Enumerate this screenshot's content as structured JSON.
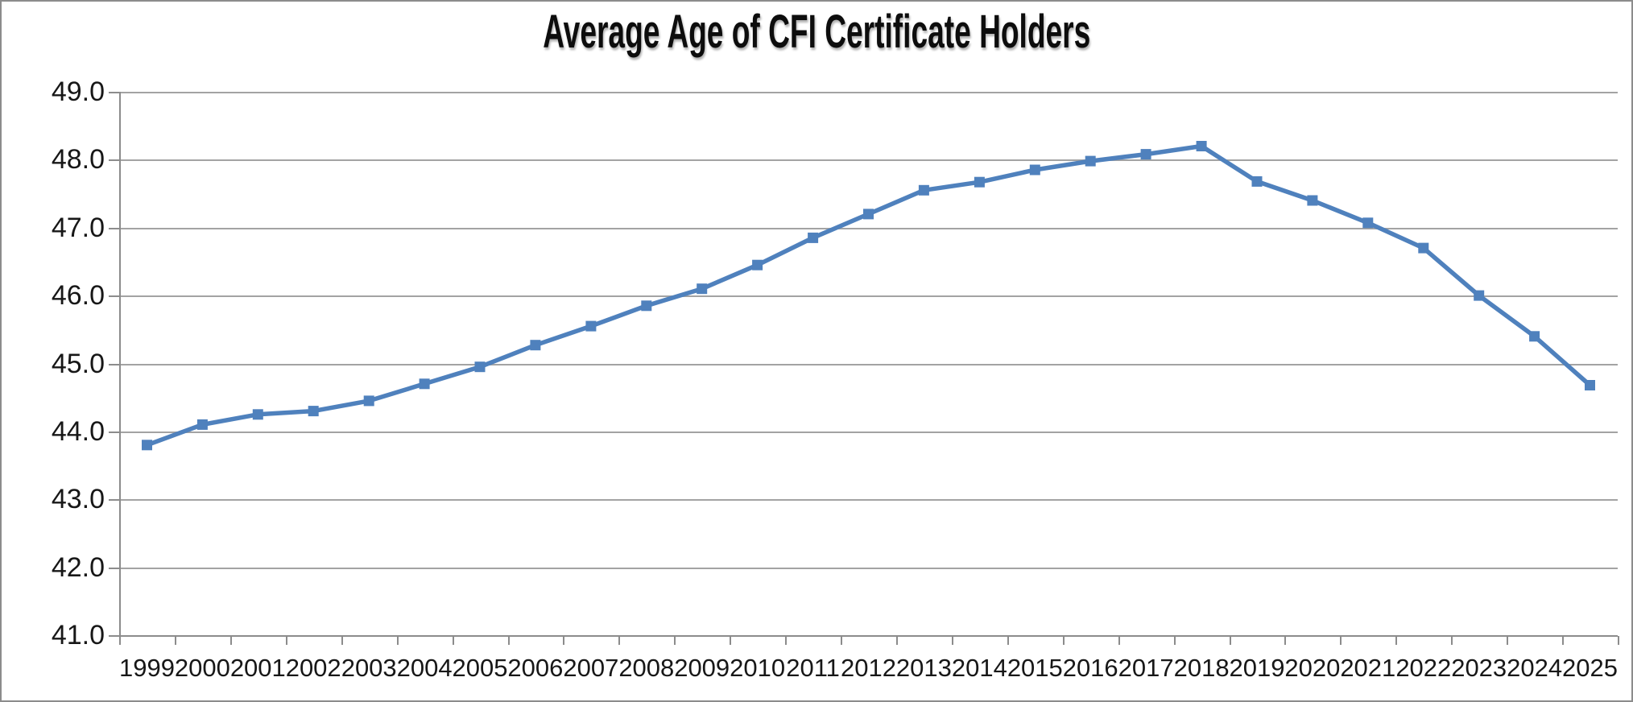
{
  "title": "Average Age of CFI Certificate Holders",
  "chart_data": {
    "type": "line",
    "title": "Average Age of CFI Certificate Holders",
    "xlabel": "",
    "ylabel": "",
    "categories": [
      "1999",
      "2000",
      "2001",
      "2002",
      "2003",
      "2004",
      "2005",
      "2006",
      "2007",
      "2008",
      "2009",
      "2010",
      "2011",
      "2012",
      "2013",
      "2014",
      "2015",
      "2016",
      "2017",
      "2018",
      "2019",
      "2020",
      "2021",
      "2022",
      "2023",
      "2024",
      "2025"
    ],
    "values": [
      43.8,
      44.1,
      44.25,
      44.3,
      44.45,
      44.7,
      44.95,
      45.27,
      45.55,
      45.85,
      46.1,
      46.45,
      46.85,
      47.2,
      47.55,
      47.67,
      47.85,
      47.98,
      48.08,
      48.2,
      47.68,
      47.4,
      47.07,
      46.7,
      46.0,
      45.4,
      44.68
    ],
    "ylim": [
      41.0,
      49.0
    ],
    "ytick_step": 1.0,
    "ytick_labels": [
      "41.0",
      "42.0",
      "43.0",
      "44.0",
      "45.0",
      "46.0",
      "47.0",
      "48.0",
      "49.0"
    ],
    "grid": true,
    "legend": "none",
    "marker": "square",
    "series_color": "#4F81BD"
  },
  "colors": {
    "line": "#4F81BD",
    "gridline": "#a3a3a3",
    "axis": "#8c8c8c",
    "label_text": "#171717",
    "title_text": "#0d0d0d",
    "frame_border": "#8c8c8c",
    "background": "#ffffff"
  }
}
